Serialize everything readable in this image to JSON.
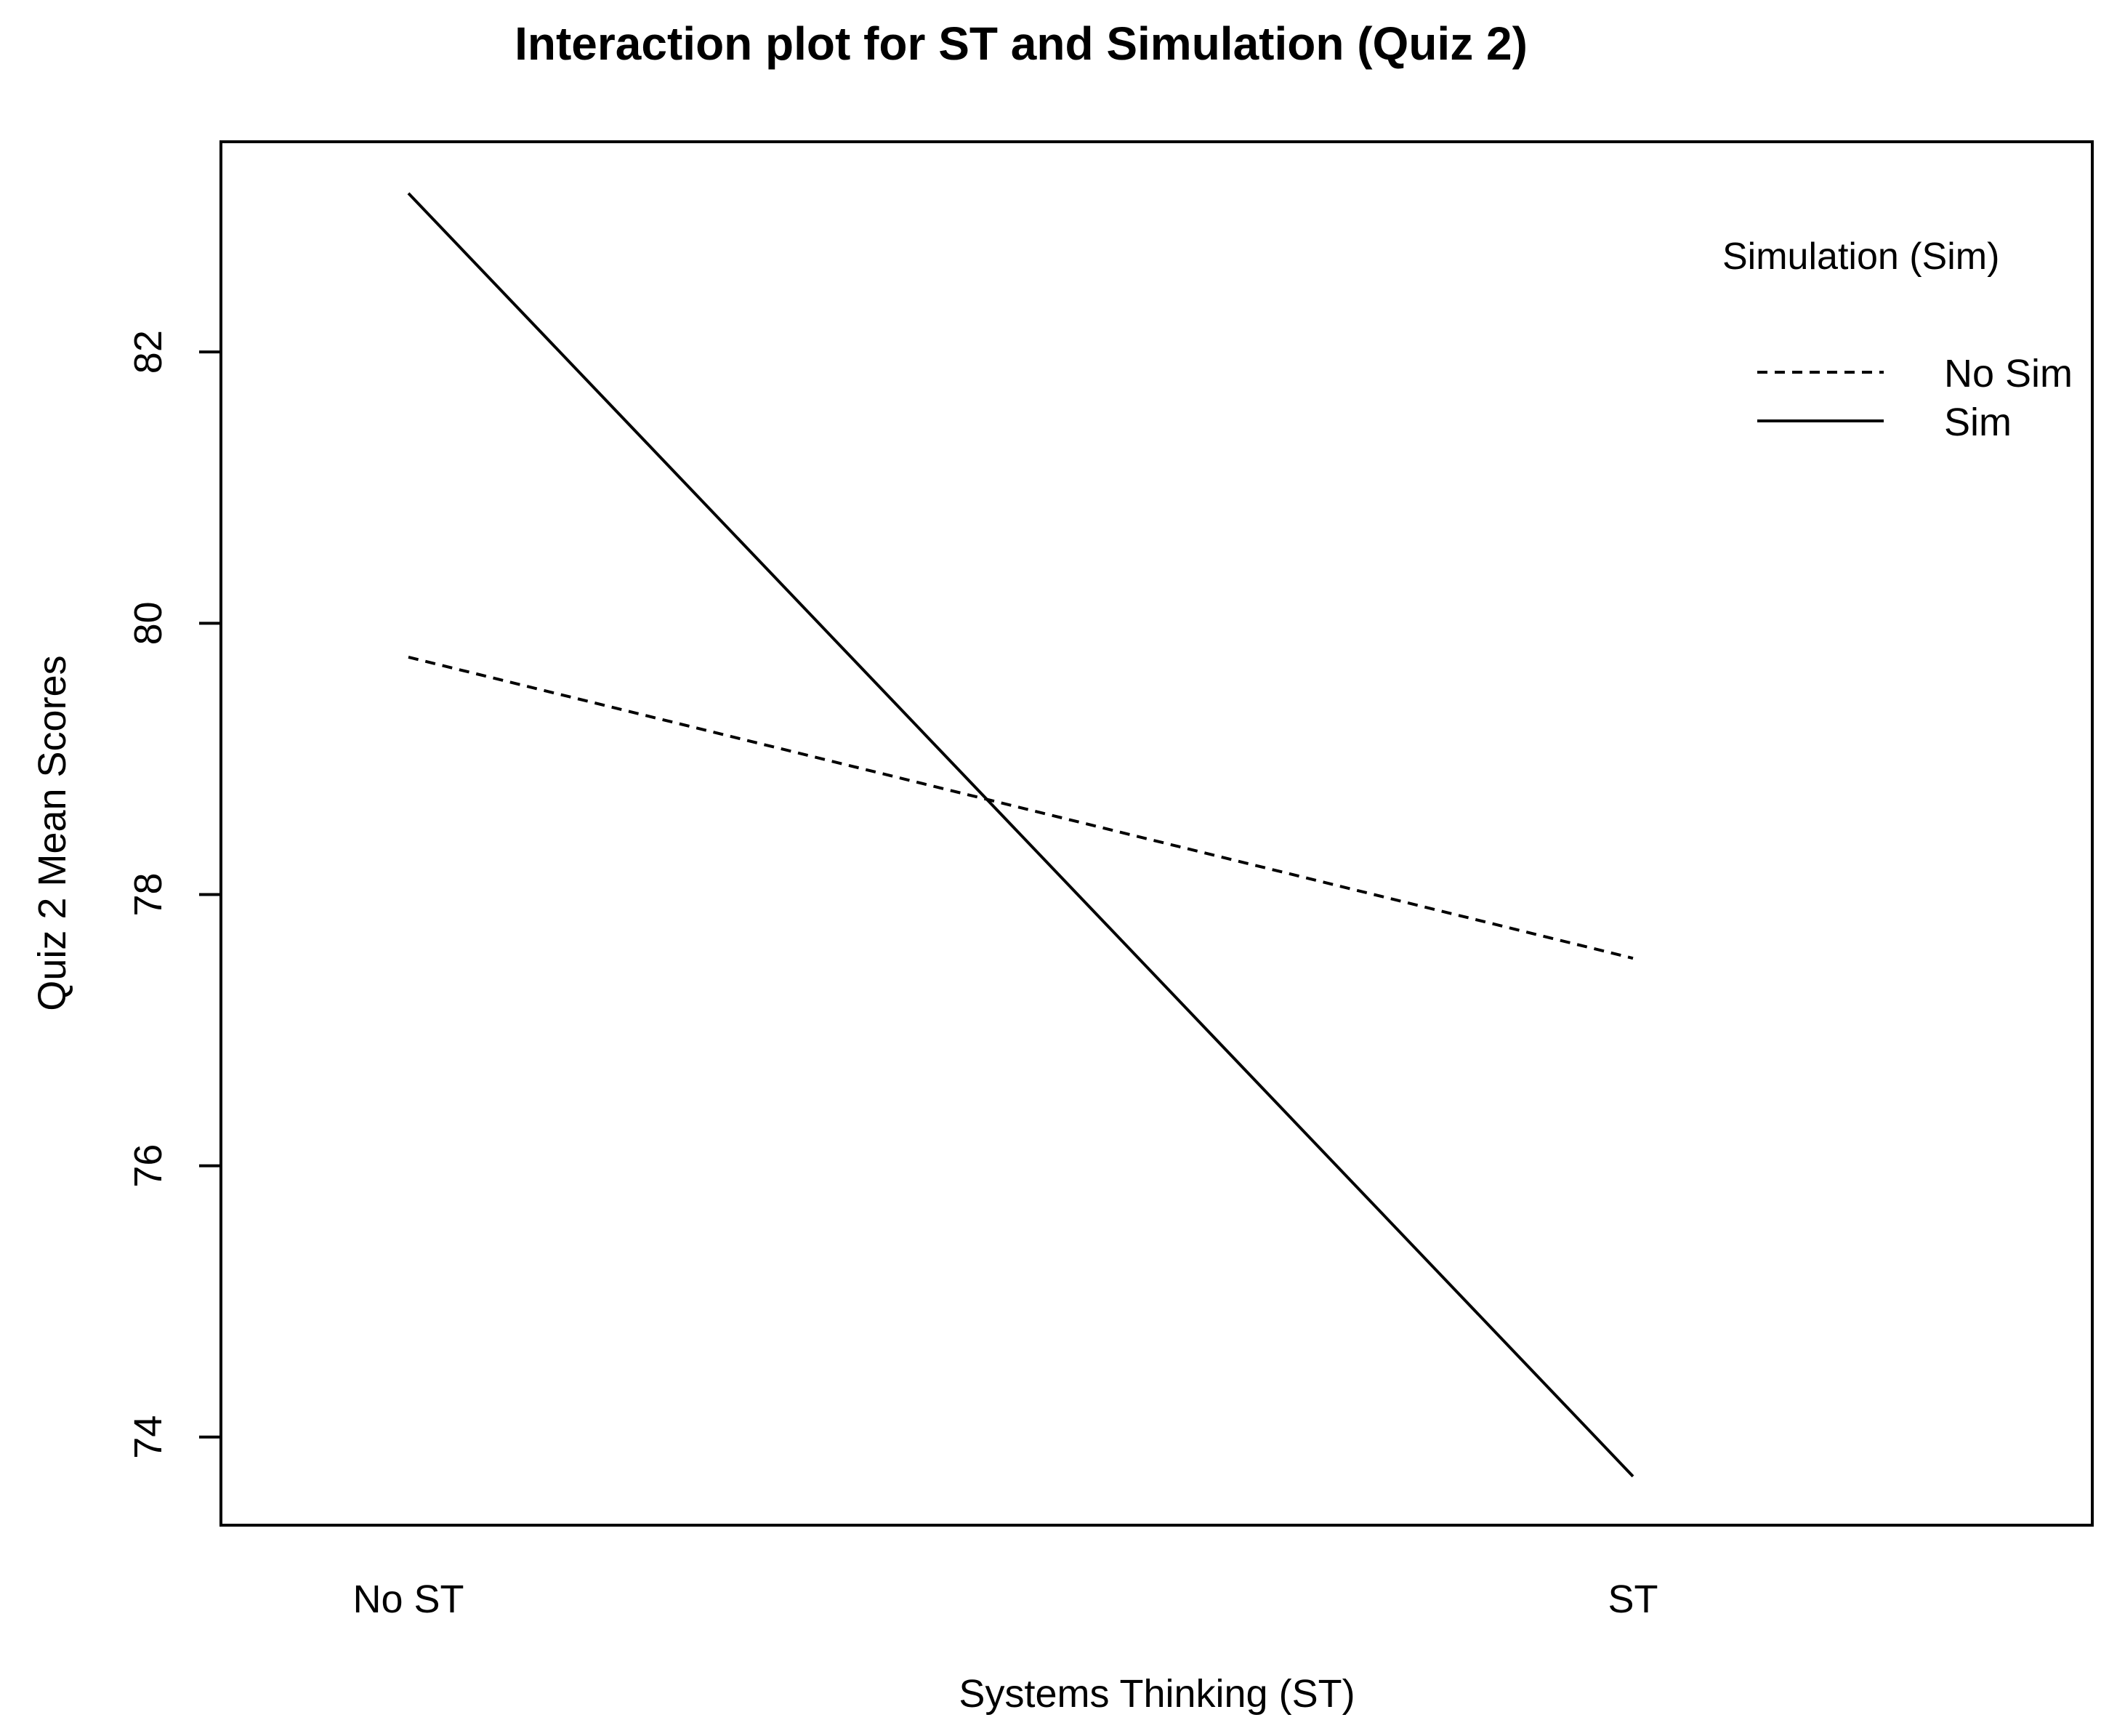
{
  "chart_data": {
    "type": "line",
    "title": "Interaction plot for ST and Simulation (Quiz 2)",
    "xlabel": "Systems Thinking (ST)",
    "ylabel": "Quiz 2 Mean Scores",
    "categories": [
      "No ST",
      "ST"
    ],
    "yticks": [
      74,
      76,
      78,
      80,
      82
    ],
    "ylim": [
      73.35,
      83.55
    ],
    "grid": false,
    "legend": {
      "title": "Simulation (Sim)",
      "placement": "top-right"
    },
    "series": [
      {
        "name": "No Sim",
        "values": [
          79.75,
          77.53
        ],
        "style": "dashed",
        "color": "#000000"
      },
      {
        "name": "Sim",
        "values": [
          83.17,
          73.71
        ],
        "style": "solid",
        "color": "#000000"
      }
    ]
  }
}
